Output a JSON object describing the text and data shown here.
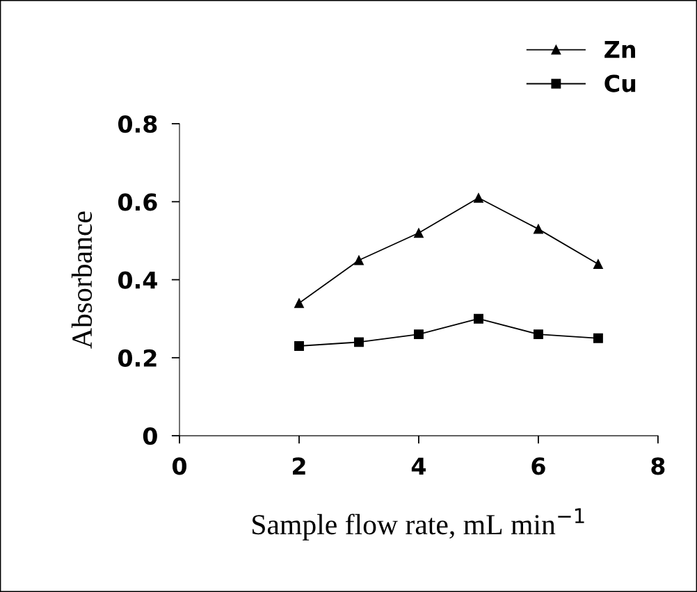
{
  "chart_data": {
    "type": "line",
    "xlabel": "Sample flow rate, mL min$^{−1}$",
    "ylabel": "Absorbance",
    "x": [
      2,
      3,
      4,
      5,
      6,
      7
    ],
    "series": [
      {
        "name": "Zn",
        "color": "#000000",
        "marker": "triangle",
        "values": [
          0.34,
          0.45,
          0.52,
          0.61,
          0.53,
          0.44
        ]
      },
      {
        "name": "Cu",
        "color": "#000000",
        "marker": "square",
        "values": [
          0.23,
          0.24,
          0.26,
          0.3,
          0.26,
          0.25
        ]
      }
    ],
    "xlim": [
      0,
      8
    ],
    "xticks": [
      0,
      2,
      4,
      6,
      8
    ],
    "ylim": [
      0,
      0.8
    ],
    "yticks": [
      0,
      0.2,
      0.4,
      0.6,
      0.8
    ],
    "grid": false,
    "legend": "top right",
    "line_style": "solid"
  }
}
